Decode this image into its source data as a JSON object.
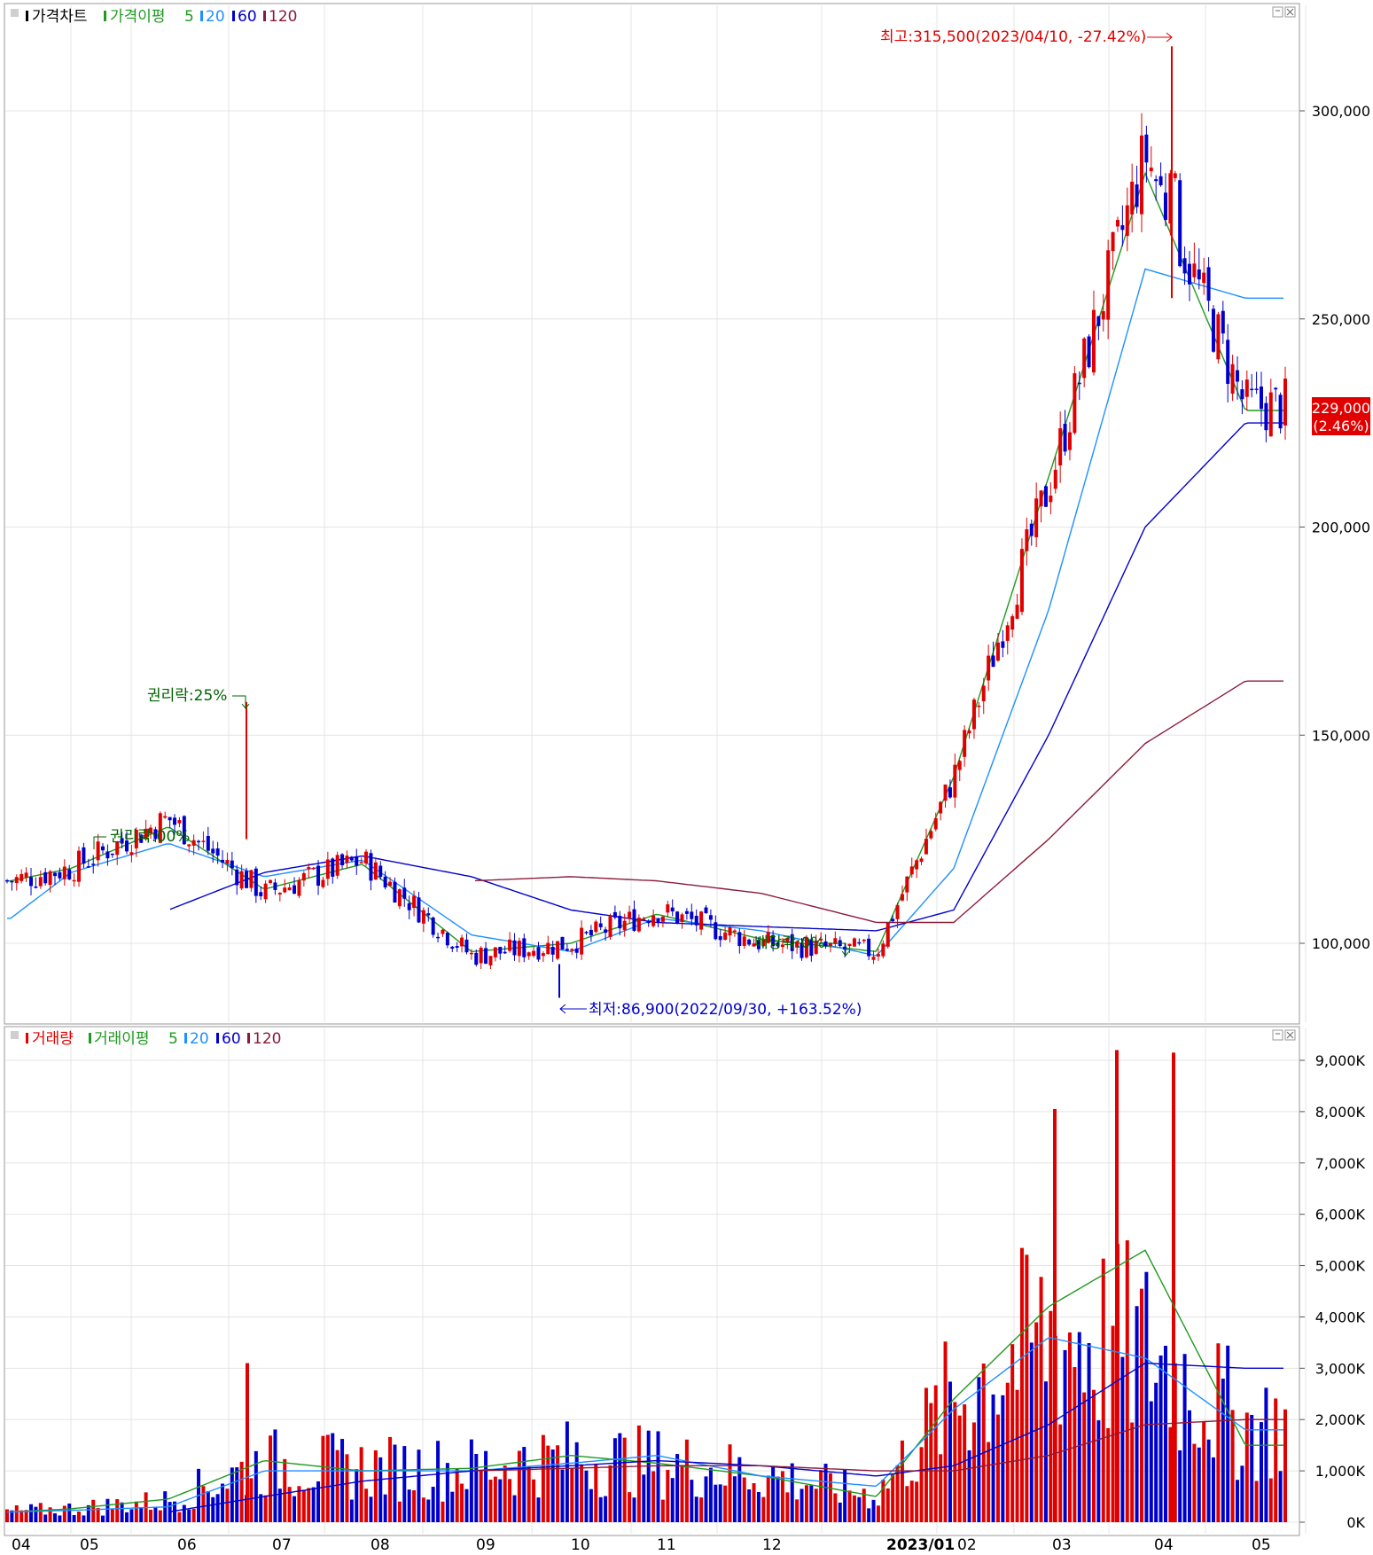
{
  "price_panel": {
    "legend": [
      {
        "label": "가격차트",
        "color": "#000000"
      },
      {
        "label": "가격이평",
        "color": "#1e9a1e"
      },
      {
        "label": "5",
        "color": "#1e9a1e"
      },
      {
        "label": "20",
        "color": "#1e90ff"
      },
      {
        "label": "60",
        "color": "#0000cc"
      },
      {
        "label": "120",
        "color": "#8b1a3a"
      }
    ],
    "annotations": {
      "high": "최고:315,500(2023/04/10,  -27.42%)",
      "low": "최저:86,900(2022/09/30,  +163.52%)",
      "rights1": "권리락:25%",
      "rights2": "권리락:00%",
      "dividend": "배당락:0%"
    },
    "current_price": "229,000",
    "current_change": "(2.46%)"
  },
  "volume_panel": {
    "legend": [
      {
        "label": "거래량",
        "color": "#e00000"
      },
      {
        "label": "거래이평",
        "color": "#1e9a1e"
      },
      {
        "label": "5",
        "color": "#1e9a1e"
      },
      {
        "label": "20",
        "color": "#1e90ff"
      },
      {
        "label": "60",
        "color": "#0000cc"
      },
      {
        "label": "120",
        "color": "#8b1a3a"
      }
    ]
  },
  "x_axis": {
    "labels": [
      "04",
      "05",
      "06",
      "07",
      "08",
      "09",
      "10",
      "11",
      "12",
      "2023/01",
      "02",
      "03",
      "04",
      "05"
    ]
  },
  "colors": {
    "up": "#e00000",
    "down": "#0000cc",
    "ma5": "#1e9a1e",
    "ma20": "#1e90ff",
    "ma60": "#0000cc",
    "ma120": "#8b1a3a",
    "grid": "#e4e4e4"
  },
  "chart_data": [
    {
      "type": "candlestick",
      "title": "가격차트",
      "y_axis_labels": [
        "300,000",
        "250,000",
        "200,000",
        "150,000",
        "100,000"
      ],
      "ylim": [
        80000,
        325000
      ],
      "grid": true,
      "x": [
        "2022/04",
        "2022/05",
        "2022/06",
        "2022/07",
        "2022/08",
        "2022/09",
        "2022/10",
        "2022/11",
        "2022/12",
        "2023/01",
        "2023/02",
        "2023/03",
        "2023/04",
        "2023/05"
      ],
      "close_approx": [
        115000,
        118000,
        130000,
        112000,
        120000,
        97000,
        100000,
        108000,
        100000,
        98000,
        140000,
        210000,
        290000,
        229000
      ],
      "high": {
        "value": 315500,
        "date": "2023/04/10"
      },
      "low": {
        "value": 86900,
        "date": "2022/09/30"
      },
      "last": {
        "value": 229000,
        "change_pct": 2.46
      },
      "moving_averages": [
        {
          "name": "5",
          "values": [
            115000,
            118000,
            128000,
            113000,
            119000,
            98000,
            100000,
            107000,
            101000,
            98000,
            140000,
            212000,
            285000,
            228000
          ]
        },
        {
          "name": "20",
          "values": [
            106000,
            117000,
            124000,
            116000,
            120000,
            102000,
            98000,
            106000,
            103000,
            97000,
            118000,
            180000,
            262000,
            255000
          ]
        },
        {
          "name": "60",
          "values": [
            null,
            null,
            108000,
            117000,
            121000,
            116000,
            108000,
            105000,
            104000,
            103000,
            108000,
            150000,
            200000,
            225000
          ]
        },
        {
          "name": "120",
          "values": [
            null,
            null,
            null,
            null,
            null,
            115000,
            116000,
            115000,
            112000,
            105000,
            105000,
            125000,
            148000,
            163000
          ]
        }
      ]
    },
    {
      "type": "bar",
      "title": "거래량",
      "y_axis_labels": [
        "9,000K",
        "8,000K",
        "7,000K",
        "6,000K",
        "5,000K",
        "4,000K",
        "3,000K",
        "2,000K",
        "1,000K",
        "0K"
      ],
      "ylim": [
        0,
        9500
      ],
      "unit": "K",
      "grid": true,
      "x": [
        "2022/04",
        "2022/05",
        "2022/06",
        "2022/07",
        "2022/08",
        "2022/09",
        "2022/10",
        "2022/11",
        "2022/12",
        "2023/01",
        "2023/02",
        "2023/03",
        "2023/04",
        "2023/05"
      ],
      "avg_volume_approx": [
        200,
        250,
        400,
        1100,
        1000,
        1000,
        1200,
        1100,
        900,
        500,
        2300,
        3500,
        3200,
        1800
      ],
      "peaks": [
        {
          "date": "2022/06",
          "value": 3100
        },
        {
          "date": "2023/03",
          "value": 8050
        },
        {
          "date": "2023/03",
          "value": 9200
        },
        {
          "date": "2023/04",
          "value": 9150
        }
      ],
      "moving_averages": [
        {
          "name": "5",
          "values": [
            200,
            260,
            450,
            1200,
            1000,
            1050,
            1300,
            1150,
            900,
            500,
            2400,
            4200,
            5300,
            1500
          ]
        },
        {
          "name": "20",
          "values": [
            200,
            230,
            300,
            1000,
            1000,
            1000,
            1150,
            1300,
            900,
            700,
            2200,
            3600,
            3200,
            1800
          ]
        },
        {
          "name": "60",
          "values": [
            null,
            null,
            200,
            500,
            800,
            1000,
            1100,
            1200,
            1100,
            900,
            1100,
            1900,
            3100,
            3000
          ]
        },
        {
          "name": "120",
          "values": [
            null,
            null,
            null,
            null,
            null,
            1000,
            1050,
            1100,
            1100,
            1000,
            1000,
            1300,
            1900,
            2000
          ]
        }
      ]
    }
  ]
}
